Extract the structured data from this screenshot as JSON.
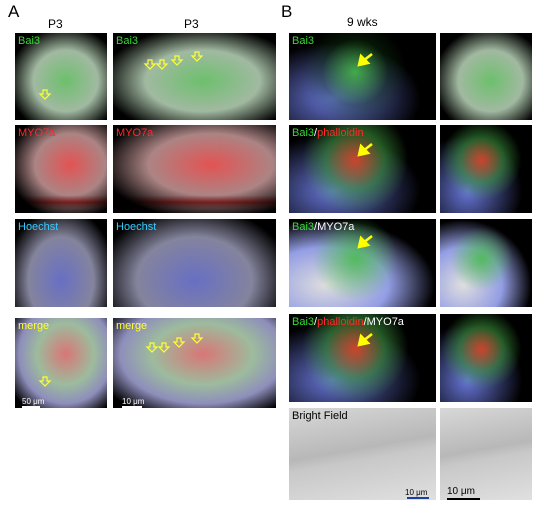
{
  "panel_a": {
    "label": "A",
    "columns": [
      "P3",
      "P3"
    ],
    "rows": [
      [
        "Bai3",
        "Bai3"
      ],
      [
        "MYO7a",
        "MYO7a"
      ],
      [
        "Hoechst",
        "Hoechst"
      ],
      [
        "merge",
        "merge"
      ]
    ],
    "scale_bars": [
      "50 μm",
      "10 μm"
    ]
  },
  "panel_b": {
    "label": "B",
    "column": "9 wks",
    "rows": [
      [
        "Bai3"
      ],
      [
        "Bai3",
        "/",
        "phalloidin"
      ],
      [
        "Bai3",
        "/MYO7a"
      ],
      [
        "Bai3",
        "/",
        "phalloidin",
        "/MYO7a"
      ],
      [
        "Bright Field"
      ]
    ],
    "scale_bars": [
      "10 μm",
      "10 μm"
    ]
  }
}
